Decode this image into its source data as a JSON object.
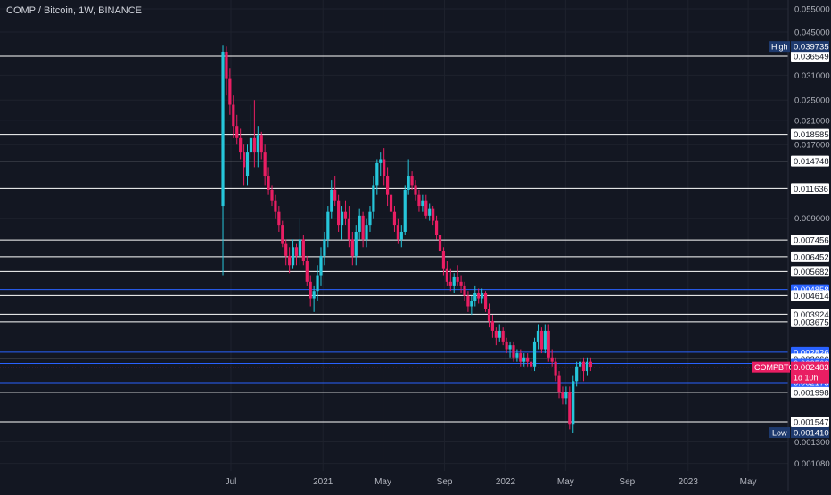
{
  "header": {
    "title": "COMP / Bitcoin, 1W, BINANCE"
  },
  "colors": {
    "background": "#131722",
    "grid": "#1e222d",
    "up": "#26c6da",
    "down": "#e91e63",
    "white_line": "#ffffff",
    "blue_line": "#2962ff",
    "axis_text": "#b2b5be"
  },
  "chart_data": {
    "type": "candlestick",
    "symbol": "COMPBTC",
    "interval": "1W",
    "exchange": "BINANCE",
    "scale": "log",
    "y_axis_ticks": [
      "0.055000",
      "0.045000",
      "0.031000",
      "0.025000",
      "0.021000",
      "0.017000",
      "0.009000",
      "0.001300",
      "0.001080"
    ],
    "x_axis_ticks": [
      {
        "label": "Jul",
        "date": "2020-07-01"
      },
      {
        "label": "2021",
        "date": "2021-01-01"
      },
      {
        "label": "May",
        "date": "2021-05-01"
      },
      {
        "label": "Sep",
        "date": "2021-09-01"
      },
      {
        "label": "2022",
        "date": "2022-01-01"
      },
      {
        "label": "May",
        "date": "2022-05-01"
      },
      {
        "label": "Sep",
        "date": "2022-09-01"
      },
      {
        "label": "2023",
        "date": "2023-01-01"
      },
      {
        "label": "May",
        "date": "2023-05-01"
      }
    ],
    "horizontal_levels": [
      {
        "value": 0.036549,
        "label": "0.036549",
        "style": "white"
      },
      {
        "value": 0.018585,
        "label": "0.018585",
        "style": "white"
      },
      {
        "value": 0.014748,
        "label": "0.014748",
        "style": "white"
      },
      {
        "value": 0.011636,
        "label": "0.011636",
        "style": "white"
      },
      {
        "value": 0.007456,
        "label": "0.007456",
        "style": "white"
      },
      {
        "value": 0.006452,
        "label": "0.006452",
        "style": "white"
      },
      {
        "value": 0.005682,
        "label": "0.005682",
        "style": "white"
      },
      {
        "value": 0.004858,
        "label": "0.004858",
        "style": "blue"
      },
      {
        "value": 0.004614,
        "label": "0.004614",
        "style": "white"
      },
      {
        "value": 0.003924,
        "label": "0.003924",
        "style": "white"
      },
      {
        "value": 0.003675,
        "label": "0.003675",
        "style": "white"
      },
      {
        "value": 0.002826,
        "label": "0.002826",
        "style": "blue"
      },
      {
        "value": 0.002666,
        "label": "0.002666",
        "style": "white"
      },
      {
        "value": 0.002563,
        "label": "0.002563",
        "style": "blue"
      },
      {
        "value": 0.002173,
        "label": "0.002173",
        "style": "blue"
      },
      {
        "value": 0.001998,
        "label": "0.001998",
        "style": "white"
      },
      {
        "value": 0.001547,
        "label": "0.001547",
        "style": "white"
      }
    ],
    "high": {
      "label": "High",
      "value": "0.039735"
    },
    "low": {
      "label": "Low",
      "value": "0.001410"
    },
    "current": {
      "symbol": "COMPBTC",
      "value": "0.002483",
      "countdown": "1d 10h"
    },
    "candles": [
      {
        "date": "2020-06-15",
        "o": 0.01,
        "h": 0.04,
        "l": 0.0055,
        "c": 0.038
      },
      {
        "date": "2020-06-22",
        "o": 0.038,
        "h": 0.0397,
        "l": 0.026,
        "c": 0.03
      },
      {
        "date": "2020-06-29",
        "o": 0.03,
        "h": 0.033,
        "l": 0.022,
        "c": 0.024
      },
      {
        "date": "2020-07-06",
        "o": 0.024,
        "h": 0.026,
        "l": 0.018,
        "c": 0.02
      },
      {
        "date": "2020-07-13",
        "o": 0.02,
        "h": 0.022,
        "l": 0.017,
        "c": 0.018
      },
      {
        "date": "2020-07-20",
        "o": 0.018,
        "h": 0.0195,
        "l": 0.015,
        "c": 0.016
      },
      {
        "date": "2020-07-27",
        "o": 0.016,
        "h": 0.017,
        "l": 0.012,
        "c": 0.014
      },
      {
        "date": "2020-08-03",
        "o": 0.013,
        "h": 0.017,
        "l": 0.012,
        "c": 0.016
      },
      {
        "date": "2020-08-10",
        "o": 0.016,
        "h": 0.024,
        "l": 0.015,
        "c": 0.018
      },
      {
        "date": "2020-08-17",
        "o": 0.018,
        "h": 0.025,
        "l": 0.014,
        "c": 0.016
      },
      {
        "date": "2020-08-24",
        "o": 0.016,
        "h": 0.02,
        "l": 0.014,
        "c": 0.0185
      },
      {
        "date": "2020-08-31",
        "o": 0.0185,
        "h": 0.019,
        "l": 0.015,
        "c": 0.016
      },
      {
        "date": "2020-09-07",
        "o": 0.016,
        "h": 0.017,
        "l": 0.012,
        "c": 0.013
      },
      {
        "date": "2020-09-14",
        "o": 0.013,
        "h": 0.014,
        "l": 0.011,
        "c": 0.0115
      },
      {
        "date": "2020-09-21",
        "o": 0.0115,
        "h": 0.012,
        "l": 0.01,
        "c": 0.0105
      },
      {
        "date": "2020-09-28",
        "o": 0.0105,
        "h": 0.011,
        "l": 0.009,
        "c": 0.0095
      },
      {
        "date": "2020-10-05",
        "o": 0.0095,
        "h": 0.01,
        "l": 0.008,
        "c": 0.0085
      },
      {
        "date": "2020-10-12",
        "o": 0.0085,
        "h": 0.0088,
        "l": 0.007,
        "c": 0.0072
      },
      {
        "date": "2020-10-19",
        "o": 0.0072,
        "h": 0.0075,
        "l": 0.006,
        "c": 0.0065
      },
      {
        "date": "2020-10-26",
        "o": 0.0065,
        "h": 0.007,
        "l": 0.0056,
        "c": 0.006
      },
      {
        "date": "2020-11-02",
        "o": 0.006,
        "h": 0.0075,
        "l": 0.0058,
        "c": 0.007
      },
      {
        "date": "2020-11-09",
        "o": 0.007,
        "h": 0.0072,
        "l": 0.006,
        "c": 0.0065
      },
      {
        "date": "2020-11-16",
        "o": 0.0065,
        "h": 0.009,
        "l": 0.006,
        "c": 0.0075
      },
      {
        "date": "2020-11-23",
        "o": 0.0075,
        "h": 0.0078,
        "l": 0.006,
        "c": 0.0062
      },
      {
        "date": "2020-11-30",
        "o": 0.0062,
        "h": 0.0065,
        "l": 0.005,
        "c": 0.0052
      },
      {
        "date": "2020-12-07",
        "o": 0.0052,
        "h": 0.0055,
        "l": 0.0042,
        "c": 0.0045
      },
      {
        "date": "2020-12-14",
        "o": 0.0045,
        "h": 0.005,
        "l": 0.004,
        "c": 0.0048
      },
      {
        "date": "2020-12-21",
        "o": 0.0048,
        "h": 0.006,
        "l": 0.0044,
        "c": 0.0055
      },
      {
        "date": "2020-12-28",
        "o": 0.0055,
        "h": 0.007,
        "l": 0.005,
        "c": 0.0065
      },
      {
        "date": "2021-01-04",
        "o": 0.0065,
        "h": 0.008,
        "l": 0.006,
        "c": 0.0075
      },
      {
        "date": "2021-01-11",
        "o": 0.0075,
        "h": 0.01,
        "l": 0.007,
        "c": 0.0095
      },
      {
        "date": "2021-01-18",
        "o": 0.0095,
        "h": 0.0125,
        "l": 0.009,
        "c": 0.0115
      },
      {
        "date": "2021-01-25",
        "o": 0.0115,
        "h": 0.013,
        "l": 0.01,
        "c": 0.0105
      },
      {
        "date": "2021-02-01",
        "o": 0.0105,
        "h": 0.011,
        "l": 0.008,
        "c": 0.0085
      },
      {
        "date": "2021-02-08",
        "o": 0.0085,
        "h": 0.01,
        "l": 0.0075,
        "c": 0.0095
      },
      {
        "date": "2021-02-15",
        "o": 0.0095,
        "h": 0.0105,
        "l": 0.0085,
        "c": 0.009
      },
      {
        "date": "2021-02-22",
        "o": 0.009,
        "h": 0.01,
        "l": 0.007,
        "c": 0.0075
      },
      {
        "date": "2021-03-01",
        "o": 0.0075,
        "h": 0.008,
        "l": 0.006,
        "c": 0.0065
      },
      {
        "date": "2021-03-08",
        "o": 0.0065,
        "h": 0.0085,
        "l": 0.006,
        "c": 0.008
      },
      {
        "date": "2021-03-15",
        "o": 0.008,
        "h": 0.0098,
        "l": 0.0075,
        "c": 0.0092
      },
      {
        "date": "2021-03-22",
        "o": 0.0092,
        "h": 0.0095,
        "l": 0.007,
        "c": 0.0075
      },
      {
        "date": "2021-03-29",
        "o": 0.0075,
        "h": 0.009,
        "l": 0.007,
        "c": 0.0085
      },
      {
        "date": "2021-04-05",
        "o": 0.0085,
        "h": 0.01,
        "l": 0.008,
        "c": 0.0095
      },
      {
        "date": "2021-04-12",
        "o": 0.0095,
        "h": 0.013,
        "l": 0.009,
        "c": 0.012
      },
      {
        "date": "2021-04-19",
        "o": 0.012,
        "h": 0.015,
        "l": 0.011,
        "c": 0.0145
      },
      {
        "date": "2021-04-26",
        "o": 0.0145,
        "h": 0.016,
        "l": 0.013,
        "c": 0.015
      },
      {
        "date": "2021-05-03",
        "o": 0.015,
        "h": 0.0165,
        "l": 0.012,
        "c": 0.013
      },
      {
        "date": "2021-05-10",
        "o": 0.013,
        "h": 0.014,
        "l": 0.01,
        "c": 0.011
      },
      {
        "date": "2021-05-17",
        "o": 0.011,
        "h": 0.0115,
        "l": 0.009,
        "c": 0.0095
      },
      {
        "date": "2021-05-24",
        "o": 0.0095,
        "h": 0.01,
        "l": 0.008,
        "c": 0.0085
      },
      {
        "date": "2021-05-31",
        "o": 0.0085,
        "h": 0.009,
        "l": 0.0072,
        "c": 0.0075
      },
      {
        "date": "2021-06-07",
        "o": 0.0075,
        "h": 0.0085,
        "l": 0.007,
        "c": 0.008
      },
      {
        "date": "2021-06-14",
        "o": 0.008,
        "h": 0.012,
        "l": 0.0078,
        "c": 0.0115
      },
      {
        "date": "2021-06-21",
        "o": 0.0115,
        "h": 0.015,
        "l": 0.011,
        "c": 0.013
      },
      {
        "date": "2021-06-28",
        "o": 0.013,
        "h": 0.0135,
        "l": 0.0115,
        "c": 0.012
      },
      {
        "date": "2021-07-05",
        "o": 0.012,
        "h": 0.0125,
        "l": 0.0105,
        "c": 0.011
      },
      {
        "date": "2021-07-12",
        "o": 0.011,
        "h": 0.0115,
        "l": 0.0095,
        "c": 0.01
      },
      {
        "date": "2021-07-19",
        "o": 0.01,
        "h": 0.011,
        "l": 0.0095,
        "c": 0.0105
      },
      {
        "date": "2021-07-26",
        "o": 0.0105,
        "h": 0.011,
        "l": 0.009,
        "c": 0.0092
      },
      {
        "date": "2021-08-02",
        "o": 0.0092,
        "h": 0.0102,
        "l": 0.0088,
        "c": 0.0098
      },
      {
        "date": "2021-08-09",
        "o": 0.0098,
        "h": 0.01,
        "l": 0.0085,
        "c": 0.0088
      },
      {
        "date": "2021-08-16",
        "o": 0.0088,
        "h": 0.0092,
        "l": 0.0075,
        "c": 0.0078
      },
      {
        "date": "2021-08-23",
        "o": 0.0078,
        "h": 0.008,
        "l": 0.0065,
        "c": 0.0068
      },
      {
        "date": "2021-08-30",
        "o": 0.0068,
        "h": 0.007,
        "l": 0.0055,
        "c": 0.0058
      },
      {
        "date": "2021-09-06",
        "o": 0.0058,
        "h": 0.0062,
        "l": 0.005,
        "c": 0.0052
      },
      {
        "date": "2021-09-13",
        "o": 0.0052,
        "h": 0.0058,
        "l": 0.0048,
        "c": 0.005
      },
      {
        "date": "2021-09-20",
        "o": 0.005,
        "h": 0.0056,
        "l": 0.0047,
        "c": 0.0054
      },
      {
        "date": "2021-09-27",
        "o": 0.0054,
        "h": 0.006,
        "l": 0.005,
        "c": 0.0052
      },
      {
        "date": "2021-10-04",
        "o": 0.0052,
        "h": 0.0055,
        "l": 0.0047,
        "c": 0.005
      },
      {
        "date": "2021-10-11",
        "o": 0.005,
        "h": 0.0052,
        "l": 0.0044,
        "c": 0.0046
      },
      {
        "date": "2021-10-18",
        "o": 0.0046,
        "h": 0.0048,
        "l": 0.004,
        "c": 0.0042
      },
      {
        "date": "2021-10-25",
        "o": 0.0042,
        "h": 0.0046,
        "l": 0.0039,
        "c": 0.0044
      },
      {
        "date": "2021-11-01",
        "o": 0.0044,
        "h": 0.005,
        "l": 0.0042,
        "c": 0.0047
      },
      {
        "date": "2021-11-08",
        "o": 0.0047,
        "h": 0.0049,
        "l": 0.0043,
        "c": 0.0045
      },
      {
        "date": "2021-11-15",
        "o": 0.0045,
        "h": 0.0049,
        "l": 0.0043,
        "c": 0.0047
      },
      {
        "date": "2021-11-22",
        "o": 0.0047,
        "h": 0.0048,
        "l": 0.004,
        "c": 0.0041
      },
      {
        "date": "2021-11-29",
        "o": 0.0041,
        "h": 0.0043,
        "l": 0.0035,
        "c": 0.0037
      },
      {
        "date": "2021-12-06",
        "o": 0.0037,
        "h": 0.0039,
        "l": 0.0032,
        "c": 0.0034
      },
      {
        "date": "2021-12-13",
        "o": 0.0034,
        "h": 0.0035,
        "l": 0.003,
        "c": 0.0032
      },
      {
        "date": "2021-12-20",
        "o": 0.0032,
        "h": 0.0036,
        "l": 0.0031,
        "c": 0.0034
      },
      {
        "date": "2021-12-27",
        "o": 0.0034,
        "h": 0.0035,
        "l": 0.003,
        "c": 0.0031
      },
      {
        "date": "2022-01-03",
        "o": 0.0031,
        "h": 0.0032,
        "l": 0.0028,
        "c": 0.0029
      },
      {
        "date": "2022-01-10",
        "o": 0.0029,
        "h": 0.0031,
        "l": 0.0027,
        "c": 0.003
      },
      {
        "date": "2022-01-17",
        "o": 0.003,
        "h": 0.0031,
        "l": 0.0026,
        "c": 0.0027
      },
      {
        "date": "2022-01-24",
        "o": 0.0027,
        "h": 0.0029,
        "l": 0.0026,
        "c": 0.0028
      },
      {
        "date": "2022-01-31",
        "o": 0.0028,
        "h": 0.0029,
        "l": 0.0025,
        "c": 0.0026
      },
      {
        "date": "2022-02-07",
        "o": 0.0026,
        "h": 0.0028,
        "l": 0.0025,
        "c": 0.0027
      },
      {
        "date": "2022-02-14",
        "o": 0.0027,
        "h": 0.0028,
        "l": 0.0025,
        "c": 0.0026
      },
      {
        "date": "2022-02-21",
        "o": 0.0026,
        "h": 0.0027,
        "l": 0.0024,
        "c": 0.0025
      },
      {
        "date": "2022-02-28",
        "o": 0.0025,
        "h": 0.0032,
        "l": 0.0024,
        "c": 0.0031
      },
      {
        "date": "2022-03-07",
        "o": 0.0031,
        "h": 0.0036,
        "l": 0.0029,
        "c": 0.0034
      },
      {
        "date": "2022-03-14",
        "o": 0.0034,
        "h": 0.0035,
        "l": 0.0028,
        "c": 0.0029
      },
      {
        "date": "2022-03-21",
        "o": 0.0029,
        "h": 0.0036,
        "l": 0.0028,
        "c": 0.0034
      },
      {
        "date": "2022-03-28",
        "o": 0.0034,
        "h": 0.0036,
        "l": 0.0026,
        "c": 0.0027
      },
      {
        "date": "2022-04-04",
        "o": 0.0027,
        "h": 0.0029,
        "l": 0.0025,
        "c": 0.0026
      },
      {
        "date": "2022-04-11",
        "o": 0.0026,
        "h": 0.0027,
        "l": 0.0022,
        "c": 0.0023
      },
      {
        "date": "2022-04-18",
        "o": 0.0023,
        "h": 0.0024,
        "l": 0.0019,
        "c": 0.002
      },
      {
        "date": "2022-04-25",
        "o": 0.002,
        "h": 0.0021,
        "l": 0.0018,
        "c": 0.0019
      },
      {
        "date": "2022-05-02",
        "o": 0.0019,
        "h": 0.0021,
        "l": 0.0018,
        "c": 0.002
      },
      {
        "date": "2022-05-09",
        "o": 0.002,
        "h": 0.0021,
        "l": 0.00145,
        "c": 0.00152
      },
      {
        "date": "2022-05-16",
        "o": 0.00152,
        "h": 0.0023,
        "l": 0.00141,
        "c": 0.0022
      },
      {
        "date": "2022-05-23",
        "o": 0.0022,
        "h": 0.0026,
        "l": 0.0021,
        "c": 0.0025
      },
      {
        "date": "2022-05-30",
        "o": 0.0025,
        "h": 0.0027,
        "l": 0.0022,
        "c": 0.0026
      },
      {
        "date": "2022-06-06",
        "o": 0.0026,
        "h": 0.0027,
        "l": 0.0022,
        "c": 0.0024
      },
      {
        "date": "2022-06-13",
        "o": 0.0024,
        "h": 0.0027,
        "l": 0.0023,
        "c": 0.0026
      },
      {
        "date": "2022-06-20",
        "o": 0.0026,
        "h": 0.0027,
        "l": 0.0024,
        "c": 0.00248
      }
    ]
  }
}
